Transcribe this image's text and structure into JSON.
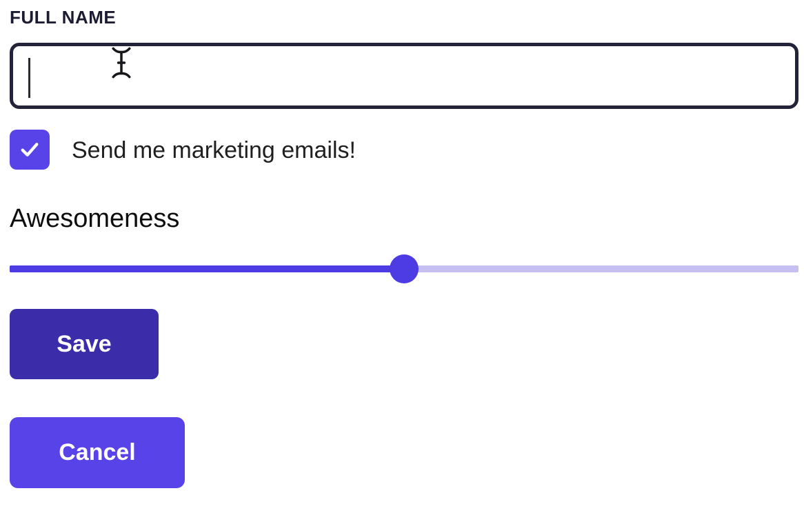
{
  "form": {
    "full_name": {
      "label": "FULL NAME",
      "value": "",
      "placeholder": ""
    },
    "marketing_checkbox": {
      "label": "Send me marketing emails!",
      "checked": true
    },
    "slider": {
      "label": "Awesomeness",
      "value_percent": 50
    },
    "buttons": {
      "save_label": "Save",
      "cancel_label": "Cancel"
    }
  },
  "cursor": {
    "type": "i-beam",
    "over": "full-name-input"
  },
  "colors": {
    "accent": "#5743e8",
    "accent_dark": "#3b2caa",
    "slider_fill": "#4d3be4",
    "slider_rest": "#c6bff2",
    "border_dark": "#23233a",
    "text_dark": "#1b1b32"
  }
}
